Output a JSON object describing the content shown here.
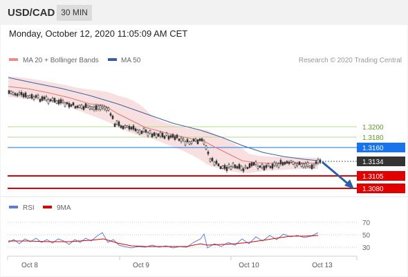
{
  "header": {
    "pair": "USD/CAD",
    "timeframe": "30 MIN"
  },
  "datetime": "Monday, October 12, 2020 11:05:09 AM CET",
  "price_panel": {
    "legend": [
      {
        "label": "MA 20 + Bollinger Bands",
        "color": "#ef8a8a"
      },
      {
        "label": "MA 50",
        "color": "#3b5ea0"
      }
    ],
    "watermark": "Research © 2020 Trading Central",
    "levels": [
      {
        "value": "1.3200",
        "color": "#90c050",
        "style": "label-text"
      },
      {
        "value": "1.3180",
        "color": "#90c050",
        "style": "label-text"
      },
      {
        "value": "1.3160",
        "color": "#1a73e8",
        "style": "label-box"
      },
      {
        "value": "1.3134",
        "color": "#333333",
        "style": "label-box",
        "note": "current"
      },
      {
        "value": "1.3105",
        "color": "#e00000",
        "style": "label-box"
      },
      {
        "value": "1.3080",
        "color": "#e00000",
        "style": "label-box"
      }
    ]
  },
  "rsi_panel": {
    "legend": [
      {
        "label": "RSI",
        "color": "#5b7fd6"
      },
      {
        "label": "9MA",
        "color": "#e00000"
      }
    ],
    "levels": [
      "70",
      "50",
      "30"
    ]
  },
  "x_axis": [
    "Oct 8",
    "Oct 9",
    "Oct 10",
    "Oct 13"
  ],
  "chart_data": {
    "type": "candlestick",
    "price_levels": [
      1.32,
      1.318,
      1.316,
      1.3134,
      1.3105,
      1.308
    ],
    "close_approx": [
      1.326,
      1.3255,
      1.325,
      1.3245,
      1.3242,
      1.3238,
      1.3232,
      1.3228,
      1.3225,
      1.322,
      1.3215,
      1.3208,
      1.32,
      1.3195,
      1.319,
      1.3185,
      1.318,
      1.3176,
      1.3172,
      1.313,
      1.3125,
      1.312,
      1.3125,
      1.313,
      1.3133,
      1.3134
    ],
    "rsi_levels": [
      70,
      50,
      30
    ],
    "projection": "down toward 1.3080"
  }
}
